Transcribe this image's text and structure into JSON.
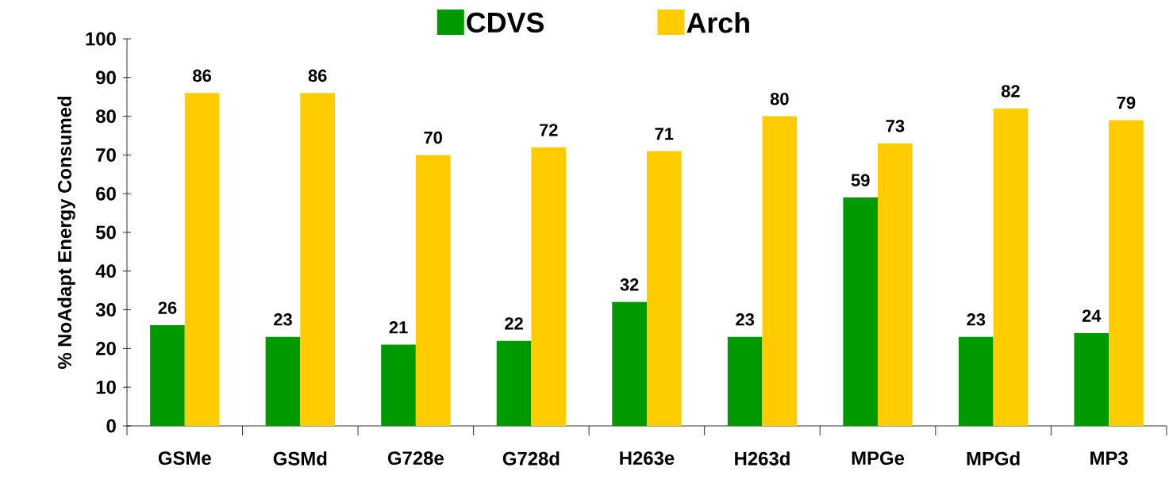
{
  "chart_data": {
    "type": "bar",
    "ylabel": "% NoAdapt Energy Consumed",
    "categories": [
      "GSMe",
      "GSMd",
      "G728e",
      "G728d",
      "H263e",
      "H263d",
      "MPGe",
      "MPGd",
      "MP3"
    ],
    "series": [
      {
        "name": "CDVS",
        "color": "#009900",
        "values": [
          26,
          23,
          21,
          22,
          32,
          23,
          59,
          23,
          24
        ]
      },
      {
        "name": "Arch",
        "color": "#ffcc00",
        "values": [
          86,
          86,
          70,
          72,
          71,
          80,
          73,
          82,
          79
        ]
      }
    ],
    "ylim": [
      0,
      100
    ],
    "yticks": [
      0,
      10,
      20,
      30,
      40,
      50,
      60,
      70,
      80,
      90,
      100
    ],
    "data_labels": true,
    "legend": "top",
    "grid": false
  }
}
